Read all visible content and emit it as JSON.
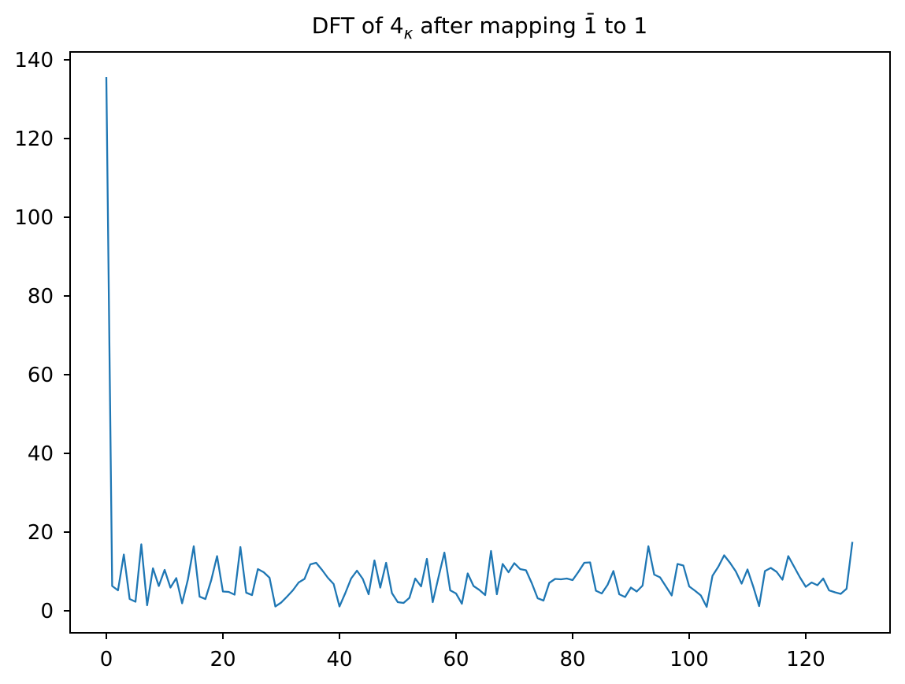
{
  "figure": {
    "background": "#ffffff"
  },
  "chart_data": {
    "type": "line",
    "title": "DFT of 4κ after mapping 1̄ to 1",
    "title_parts": {
      "pre": "DFT of 4",
      "subscript": "κ",
      "mid": " after mapping ",
      "overbar_one": "1̄",
      "post": " to 1"
    },
    "xlabel": "",
    "ylabel": "",
    "x_description": "frequency index k, from 0 to 128, step 1",
    "x_start": 0,
    "x_step": 1,
    "values": [
      135.6,
      6.3,
      5.2,
      14.3,
      3.0,
      2.3,
      16.9,
      1.4,
      10.8,
      6.3,
      10.4,
      5.9,
      8.3,
      1.9,
      8.0,
      16.4,
      3.6,
      3.0,
      7.8,
      13.9,
      4.9,
      4.8,
      4.1,
      16.2,
      4.6,
      4.0,
      10.6,
      9.8,
      8.4,
      1.1,
      2.1,
      3.6,
      5.2,
      7.2,
      8.1,
      11.8,
      12.2,
      10.4,
      8.4,
      6.8,
      1.1,
      4.5,
      8.2,
      10.2,
      8.1,
      4.2,
      12.8,
      5.9,
      12.2,
      4.5,
      2.2,
      2.0,
      3.3,
      8.2,
      6.2,
      13.2,
      2.2,
      8.6,
      14.8,
      5.2,
      4.4,
      1.8,
      9.5,
      6.3,
      5.3,
      4.0,
      15.2,
      4.2,
      11.9,
      9.8,
      12.1,
      10.6,
      10.3,
      7.0,
      3.2,
      2.6,
      7.1,
      8.1,
      8.0,
      8.2,
      7.8,
      9.9,
      12.2,
      12.3,
      5.1,
      4.4,
      6.6,
      10.1,
      4.2,
      3.5,
      5.9,
      4.9,
      6.4,
      16.4,
      9.2,
      8.5,
      6.2,
      3.9,
      11.9,
      11.5,
      6.2,
      5.1,
      3.9,
      1.0,
      8.9,
      11.2,
      14.1,
      12.2,
      10.0,
      6.9,
      10.5,
      6.1,
      1.2,
      10.1,
      10.9,
      9.9,
      7.9,
      13.9,
      11.2,
      8.5,
      6.1,
      7.2,
      6.5,
      8.2,
      5.2,
      4.7,
      4.3,
      5.6,
      17.5
    ],
    "xlim": [
      -6.22,
      134.46
    ],
    "ylim": [
      -5.6,
      142.0
    ],
    "xticks": [
      0,
      20,
      40,
      60,
      80,
      100,
      120
    ],
    "yticks": [
      0,
      20,
      40,
      60,
      80,
      100,
      120,
      140
    ],
    "grid": false,
    "legend_position": "none",
    "line_color": "#1f77b4",
    "line_width": 2.3,
    "axis_color": "#000000",
    "tick_label_color": "#000000"
  }
}
